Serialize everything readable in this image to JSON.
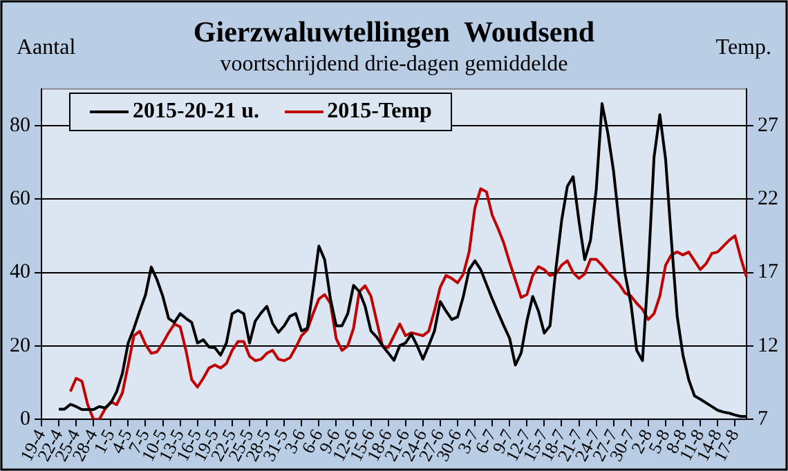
{
  "chart_data": {
    "type": "line",
    "title": "Gierzwaluwtellingen  Woudsend",
    "subtitle": "voortschrijdend drie-dagen gemiddelde",
    "ylabel": "Aantal",
    "y2label": "Temp.",
    "categories": [
      "19-4",
      null,
      null,
      "22-4",
      null,
      null,
      "25-4",
      null,
      null,
      "28-4",
      null,
      null,
      "1-5",
      null,
      null,
      "4-5",
      null,
      null,
      "7-5",
      null,
      null,
      "10-5",
      null,
      null,
      "13-5",
      null,
      null,
      "16-5",
      null,
      null,
      "19-5",
      null,
      null,
      "22-5",
      null,
      null,
      "25-5",
      null,
      null,
      "28-5",
      null,
      null,
      "31-5",
      null,
      null,
      "3-6",
      null,
      null,
      "6-6",
      null,
      null,
      "9-6",
      null,
      null,
      "12-6",
      null,
      null,
      "15-6",
      null,
      null,
      "18-6",
      null,
      null,
      "21-6",
      null,
      null,
      "24-6",
      null,
      null,
      "27-6",
      null,
      null,
      "30-6",
      null,
      null,
      "3-7",
      null,
      null,
      "6-7",
      null,
      null,
      "9-7",
      null,
      null,
      "12-7",
      null,
      null,
      "15-7",
      null,
      null,
      "18-7",
      null,
      null,
      "21-7",
      null,
      null,
      "24-7",
      null,
      null,
      "27-7",
      null,
      null,
      "30-7",
      null,
      null,
      "2-8",
      null,
      null,
      "5-8",
      null,
      null,
      "8-8",
      null,
      null,
      "11-8",
      null,
      null,
      "14-8",
      null,
      null,
      "17-8",
      null,
      null
    ],
    "series": [
      {
        "name": "2015-20-21 u.",
        "color": "#000000",
        "values": [
          null,
          null,
          null,
          2.8,
          2.8,
          4.1,
          3.5,
          2.7,
          2.7,
          2.7,
          3.5,
          3.1,
          4.5,
          7.5,
          12.5,
          20.8,
          24.8,
          29.5,
          33.9,
          41.5,
          38,
          33.5,
          27.5,
          26.4,
          28.8,
          27.5,
          26.4,
          20.8,
          21.7,
          19.7,
          19.5,
          17.5,
          20.8,
          28.8,
          29.7,
          28.8,
          20.8,
          26.8,
          29,
          30.8,
          26.1,
          23.7,
          25.5,
          28.1,
          28.8,
          24.1,
          24.8,
          35.5,
          47.2,
          43.5,
          32.8,
          25.5,
          25.5,
          28.8,
          36.5,
          34.8,
          30.8,
          24.1,
          22.4,
          20.1,
          18.1,
          16.1,
          20.1,
          20.8,
          23.2,
          20.1,
          16.4,
          20.1,
          24.1,
          32.1,
          29.5,
          27.2,
          27.9,
          33.5,
          40.8,
          43.2,
          40.8,
          36.8,
          32.8,
          29.1,
          25.5,
          22.1,
          14.8,
          18.1,
          26.8,
          33.5,
          29.5,
          23.5,
          25.5,
          40.8,
          54.1,
          63.5,
          66.1,
          54.1,
          43.5,
          48.8,
          62.8,
          86,
          78,
          67.5,
          52.8,
          39.5,
          31.5,
          18.8,
          16,
          40.8,
          71.5,
          83,
          70.8,
          48.8,
          28.1,
          17.5,
          10.8,
          6.4,
          5.5,
          4.5,
          3.5,
          2.5,
          2,
          1.7,
          1.2,
          0.8,
          0.8
        ]
      },
      {
        "name": "2015-Temp",
        "color": "#c00000",
        "axis": "y2",
        "values": [
          null,
          null,
          null,
          null,
          null,
          8.9,
          9.8,
          9.6,
          8,
          7,
          7,
          7.7,
          8.2,
          8,
          8.8,
          10.7,
          12.7,
          13,
          12.1,
          11.5,
          11.6,
          12.2,
          12.9,
          13.5,
          13.3,
          11.7,
          9.7,
          9.2,
          9.8,
          10.5,
          10.7,
          10.5,
          10.8,
          11.7,
          12.3,
          12.3,
          11.3,
          11,
          11.1,
          11.5,
          11.7,
          11.1,
          11,
          11.2,
          11.9,
          12.7,
          13.1,
          14.2,
          15.2,
          15.5,
          14.9,
          12.5,
          11.7,
          12,
          13.2,
          15.7,
          16.1,
          15.4,
          13.7,
          12,
          11.9,
          12.7,
          13.5,
          12.7,
          12.9,
          12.8,
          12.7,
          13,
          14.4,
          16,
          16.8,
          16.6,
          16.3,
          16.9,
          18.4,
          21.4,
          22.7,
          22.5,
          20.9,
          20,
          19,
          17.7,
          16.5,
          15.3,
          15.5,
          16.8,
          17.4,
          17.2,
          16.8,
          16.9,
          17.5,
          17.8,
          17,
          16.6,
          16.9,
          17.9,
          17.9,
          17.5,
          17,
          16.6,
          16.2,
          15.6,
          15.4,
          14.9,
          14.5,
          13.8,
          14.2,
          15.4,
          17.5,
          18.2,
          18.4,
          18.2,
          18.4,
          17.8,
          17.2,
          17.6,
          18.3,
          18.4,
          18.8,
          19.2,
          19.5,
          18,
          16.7
        ]
      }
    ],
    "ylim": [
      0,
      90
    ],
    "yticks": [
      0,
      20,
      40,
      60,
      80
    ],
    "y2lim": [
      7,
      29.5
    ],
    "y2ticks": [
      7,
      12,
      17,
      22,
      27
    ],
    "grid": "y",
    "legend": "top left"
  }
}
